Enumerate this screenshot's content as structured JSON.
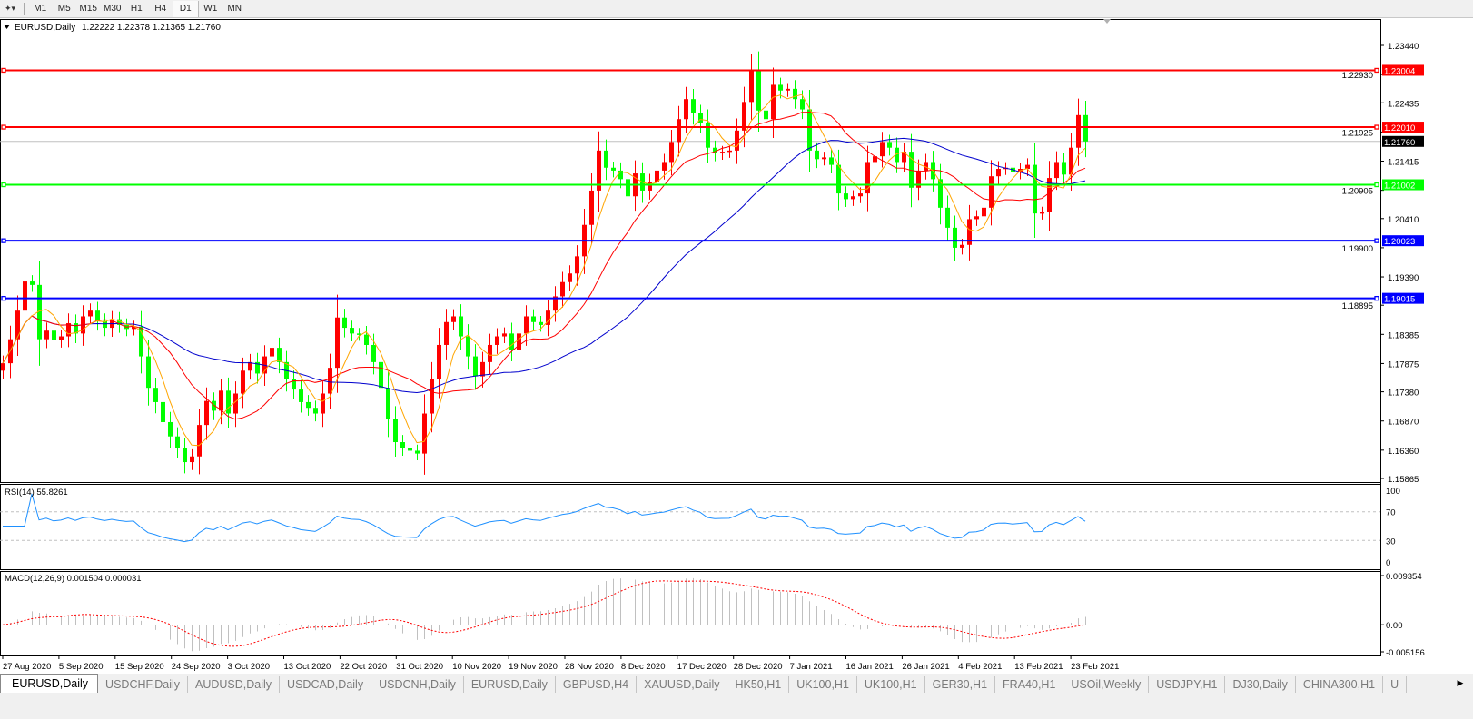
{
  "toolbar": {
    "timeframes": [
      "M1",
      "M5",
      "M15",
      "M30",
      "H1",
      "H4",
      "D1",
      "W1",
      "MN"
    ],
    "active_timeframe": "D1"
  },
  "chart": {
    "title": "EURUSD,Daily",
    "ohlc_text": "1.22222 1.22378 1.21365 1.21760"
  },
  "chart_data": {
    "type": "candlestick",
    "symbol": "EURUSD",
    "timeframe": "Daily",
    "ylim": [
      1.15865,
      1.2344
    ],
    "colors": {
      "bull": "#ff0000",
      "bear": "#00ff00",
      "ma_fast": "#ffa500",
      "ma_mid": "#ff0000",
      "ma_slow": "#0000cd",
      "rsi": "#1e90ff",
      "macd_signal": "#ff0000",
      "macd_hist": "#c0c0c0"
    },
    "close": [
      1.1788,
      1.183,
      1.188,
      1.1931,
      1.1925,
      1.183,
      1.1845,
      1.1828,
      1.1835,
      1.1858,
      1.184,
      1.187,
      1.188,
      1.1862,
      1.185,
      1.1865,
      1.1855,
      1.1848,
      1.1852,
      1.18,
      1.1745,
      1.172,
      1.1685,
      1.166,
      1.164,
      1.1615,
      1.1625,
      1.168,
      1.1722,
      1.1705,
      1.174,
      1.17,
      1.1735,
      1.1775,
      1.179,
      1.177,
      1.18,
      1.1815,
      1.179,
      1.176,
      1.1742,
      1.172,
      1.171,
      1.17,
      1.1735,
      1.178,
      1.1868,
      1.185,
      1.184,
      1.1838,
      1.182,
      1.179,
      1.1745,
      1.169,
      1.165,
      1.164,
      1.1635,
      1.163,
      1.17,
      1.176,
      1.182,
      1.186,
      1.187,
      1.1835,
      1.18,
      1.1765,
      1.179,
      1.182,
      1.1835,
      1.184,
      1.1812,
      1.184,
      1.187,
      1.186,
      1.1855,
      1.188,
      1.1905,
      1.193,
      1.1945,
      1.1975,
      1.203,
      1.209,
      1.216,
      1.213,
      1.2125,
      1.211,
      1.208,
      1.212,
      1.209,
      1.2105,
      1.2125,
      1.214,
      1.2175,
      1.2215,
      1.225,
      1.2225,
      1.2208,
      1.2165,
      1.2155,
      1.2158,
      1.216,
      1.2195,
      1.2245,
      1.23,
      1.223,
      1.2215,
      1.2275,
      1.2265,
      1.2268,
      1.225,
      1.2232,
      1.216,
      1.2145,
      1.2148,
      1.2135,
      1.2085,
      1.2075,
      1.208,
      1.2085,
      1.214,
      1.215,
      1.2175,
      1.2165,
      1.214,
      1.2158,
      1.2095,
      1.2125,
      1.214,
      1.211,
      1.206,
      1.2025,
      1.199,
      1.1995,
      1.204,
      1.2045,
      1.206,
      1.2115,
      1.2128,
      1.213,
      1.2122,
      1.2128,
      1.2135,
      1.205,
      1.2052,
      1.2112,
      1.214,
      1.2118,
      1.2165,
      1.2222,
      1.2176
    ],
    "price_axis_ticks": [
      "1.23440",
      "1.22930",
      "1.22435",
      "1.21925",
      "1.21415",
      "1.20905",
      "1.20410",
      "1.19900",
      "1.19390",
      "1.18895",
      "1.18385",
      "1.17875",
      "1.17380",
      "1.16870",
      "1.16360",
      "1.15865"
    ],
    "date_labels": [
      "27 Aug 2020",
      "5 Sep 2020",
      "15 Sep 2020",
      "24 Sep 2020",
      "3 Oct 2020",
      "13 Oct 2020",
      "22 Oct 2020",
      "31 Oct 2020",
      "10 Nov 2020",
      "19 Nov 2020",
      "28 Nov 2020",
      "8 Dec 2020",
      "17 Dec 2020",
      "28 Dec 2020",
      "7 Jan 2021",
      "16 Jan 2021",
      "26 Jan 2021",
      "4 Feb 2021",
      "13 Feb 2021",
      "23 Feb 2021"
    ],
    "horizontal_lines": [
      {
        "price": "1.23004",
        "color": "#ff0000"
      },
      {
        "price": "1.22010",
        "color": "#ff0000"
      },
      {
        "price": "1.21002",
        "color": "#00ff00"
      },
      {
        "price": "1.20023",
        "color": "#0000ff"
      },
      {
        "price": "1.19015",
        "color": "#0000ff"
      }
    ],
    "current_price": "1.21760",
    "rsi": {
      "label": "RSI(14) 55.8261",
      "levels": [
        70,
        30
      ],
      "ticks": [
        "100",
        "70",
        "30",
        "0"
      ]
    },
    "macd": {
      "label": "MACD(12,26,9) 0.001504 0.000031",
      "ticks": [
        "0.009354",
        "0.00",
        "-0.005156"
      ],
      "range": [
        -0.005156,
        0.009354
      ]
    }
  },
  "tabs": [
    "EURUSD,Daily",
    "USDCHF,Daily",
    "AUDUSD,Daily",
    "USDCAD,Daily",
    "USDCNH,Daily",
    "EURUSD,Daily",
    "GBPUSD,H4",
    "XAUUSD,Daily",
    "HK50,H1",
    "UK100,H1",
    "UK100,H1",
    "GER30,H1",
    "FRA40,H1",
    "USOil,Weekly",
    "USDJPY,H1",
    "DJ30,Daily",
    "CHINA300,H1",
    "U"
  ],
  "active_tab": 0
}
